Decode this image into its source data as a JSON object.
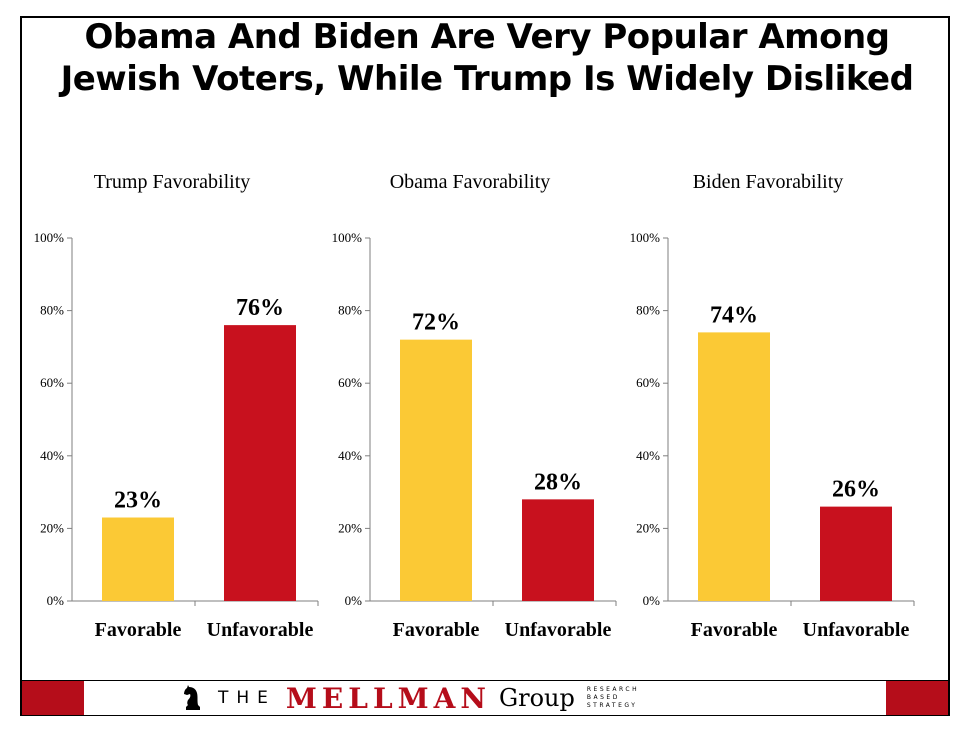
{
  "title_line1": "Obama And Biden Are Very Popular Among",
  "title_line2": "Jewish Voters, While Trump Is Widely Disliked",
  "colors": {
    "favorable": "#fbc935",
    "unfavorable": "#c8111e",
    "footer_red": "#b50d1a"
  },
  "chart_data": [
    {
      "type": "bar",
      "title": "Trump Favorability",
      "categories": [
        "Favorable",
        "Unfavorable"
      ],
      "values": [
        23,
        76
      ],
      "data_labels": [
        "23%",
        "76%"
      ],
      "ylim": [
        0,
        100
      ],
      "yticks": [
        "0%",
        "20%",
        "40%",
        "60%",
        "80%",
        "100%"
      ],
      "xlabel": "",
      "ylabel": ""
    },
    {
      "type": "bar",
      "title": "Obama Favorability",
      "categories": [
        "Favorable",
        "Unfavorable"
      ],
      "values": [
        72,
        28
      ],
      "data_labels": [
        "72%",
        "28%"
      ],
      "ylim": [
        0,
        100
      ],
      "yticks": [
        "0%",
        "20%",
        "40%",
        "60%",
        "80%",
        "100%"
      ],
      "xlabel": "",
      "ylabel": ""
    },
    {
      "type": "bar",
      "title": "Biden Favorability",
      "categories": [
        "Favorable",
        "Unfavorable"
      ],
      "values": [
        74,
        26
      ],
      "data_labels": [
        "74%",
        "26%"
      ],
      "ylim": [
        0,
        100
      ],
      "yticks": [
        "0%",
        "20%",
        "40%",
        "60%",
        "80%",
        "100%"
      ],
      "xlabel": "",
      "ylabel": ""
    }
  ],
  "footer": {
    "the": "THE",
    "mellman": "MELLMAN",
    "group": "Group",
    "tagline": [
      "RESEARCH",
      "BASED",
      "STRATEGY"
    ],
    "logo_icon": "chess-knight-icon"
  }
}
